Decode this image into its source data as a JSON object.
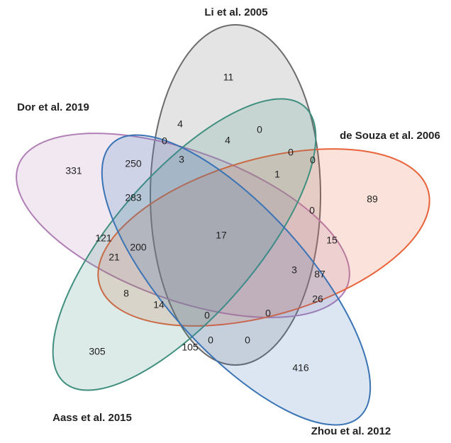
{
  "sets": [
    {
      "name": "Li et al. 2005",
      "color": "#6b6b6b"
    },
    {
      "name": "Dor et al. 2019",
      "color": "#b07fb5"
    },
    {
      "name": "de Souza et al. 2006",
      "color": "#e8633a"
    },
    {
      "name": "Aass et al. 2015",
      "color": "#3f8f7f"
    },
    {
      "name": "Zhou et al. 2012",
      "color": "#3a74b5"
    }
  ],
  "regions": [
    11,
    4,
    0,
    0,
    4,
    0,
    0,
    250,
    3,
    1,
    331,
    89,
    283,
    0,
    17,
    121,
    15,
    200,
    21,
    3,
    87,
    8,
    26,
    14,
    0,
    0,
    305,
    105,
    0,
    0,
    416
  ]
}
